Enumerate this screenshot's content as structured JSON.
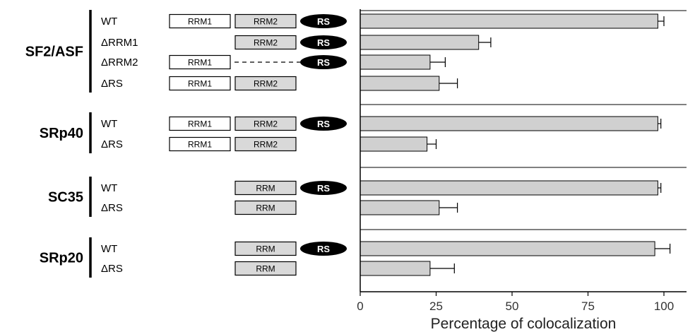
{
  "colors": {
    "bar_fill": "#d0d0d0",
    "domain_gray": "#d9d9d9",
    "rs_black": "#000000"
  },
  "domain_labels": {
    "rrm1": "RRM1",
    "rrm2": "RRM2",
    "rrm": "RRM",
    "rs": "RS"
  },
  "groups": [
    {
      "name": "SF2/ASF",
      "rows": [
        {
          "label": "WT",
          "domains": [
            "RRM1",
            "RRM2",
            "RS"
          ]
        },
        {
          "label": "ΔRRM1",
          "domains": [
            "RRM2",
            "RS"
          ]
        },
        {
          "label": "ΔRRM2",
          "domains": [
            "RRM1",
            "RS"
          ]
        },
        {
          "label": "ΔRS",
          "domains": [
            "RRM1",
            "RRM2"
          ]
        }
      ]
    },
    {
      "name": "SRp40",
      "rows": [
        {
          "label": "WT",
          "domains": [
            "RRM1",
            "RRM2",
            "RS"
          ]
        },
        {
          "label": "ΔRS",
          "domains": [
            "RRM1",
            "RRM2"
          ]
        }
      ]
    },
    {
      "name": "SC35",
      "rows": [
        {
          "label": "WT",
          "domains": [
            "RRM",
            "RS"
          ]
        },
        {
          "label": "ΔRS",
          "domains": [
            "RRM"
          ]
        }
      ]
    },
    {
      "name": "SRp20",
      "rows": [
        {
          "label": "WT",
          "domains": [
            "RRM",
            "RS"
          ]
        },
        {
          "label": "ΔRS",
          "domains": [
            "RRM"
          ]
        }
      ]
    }
  ],
  "chart_data": {
    "type": "bar",
    "orientation": "horizontal",
    "title": "",
    "xlabel": "Percentage of colocalization",
    "ylabel": "",
    "xlim": [
      0,
      100
    ],
    "xticks": [
      0,
      25,
      50,
      75,
      100
    ],
    "categories": [
      "SF2/ASF WT",
      "SF2/ASF ΔRRM1",
      "SF2/ASF ΔRRM2",
      "SF2/ASF ΔRS",
      "SRp40 WT",
      "SRp40 ΔRS",
      "SC35 WT",
      "SC35 ΔRS",
      "SRp20 WT",
      "SRp20 ΔRS"
    ],
    "values": [
      98,
      39,
      23,
      26,
      98,
      22,
      98,
      26,
      97,
      23
    ],
    "errors": [
      2,
      4,
      5,
      6,
      1,
      3,
      1,
      6,
      5,
      8
    ],
    "grid": false,
    "legend": "none"
  }
}
